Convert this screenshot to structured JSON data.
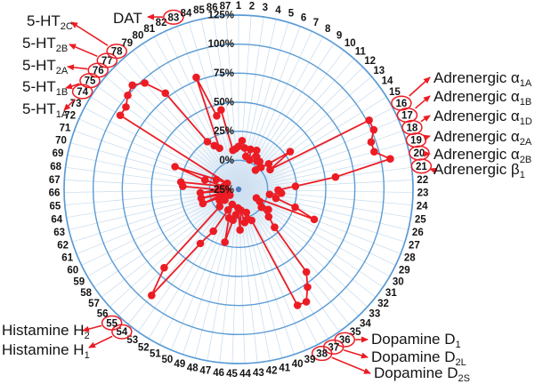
{
  "chart_data": {
    "type": "radar",
    "title": "",
    "axis_count": 87,
    "axis_labels": [
      "1",
      "2",
      "3",
      "4",
      "5",
      "6",
      "7",
      "8",
      "9",
      "10",
      "11",
      "12",
      "13",
      "14",
      "15",
      "16",
      "17",
      "18",
      "19",
      "20",
      "21",
      "22",
      "23",
      "24",
      "25",
      "26",
      "27",
      "28",
      "29",
      "30",
      "31",
      "32",
      "33",
      "34",
      "35",
      "36",
      "37",
      "38",
      "39",
      "40",
      "41",
      "42",
      "43",
      "44",
      "45",
      "46",
      "47",
      "48",
      "49",
      "50",
      "51",
      "52",
      "53",
      "54",
      "55",
      "56",
      "57",
      "58",
      "59",
      "60",
      "61",
      "62",
      "63",
      "64",
      "65",
      "66",
      "67",
      "68",
      "69",
      "70",
      "71",
      "72",
      "73",
      "74",
      "75",
      "76",
      "77",
      "78",
      "79",
      "80",
      "81",
      "82",
      "83",
      "84",
      "85",
      "86",
      "87"
    ],
    "values": [
      12,
      17,
      11,
      4,
      11,
      2,
      12,
      7,
      4,
      5,
      -3,
      2,
      9,
      30,
      7,
      102,
      102,
      96,
      96,
      108,
      59,
      24,
      9,
      12,
      2,
      8,
      26,
      45,
      -8,
      -4,
      6,
      0,
      10,
      20,
      67,
      78,
      88,
      87,
      4,
      -4,
      2,
      4,
      -7,
      10,
      -9,
      -3,
      2,
      22,
      1,
      -11,
      -5,
      17,
      32,
      93,
      68,
      -3,
      -10,
      -16,
      -6,
      -13,
      8,
      -10,
      8,
      -16,
      8,
      -8,
      23,
      25,
      -12,
      5,
      33,
      -4,
      -14,
      95,
      95,
      100,
      103,
      97,
      79,
      24,
      18,
      14,
      78,
      41,
      45,
      9,
      10
    ],
    "range": [
      -25,
      125
    ],
    "rings": {
      "values": [
        -25,
        0,
        25,
        50,
        75,
        100,
        125
      ],
      "labels": [
        "-25%",
        "0%",
        "25%",
        "50%",
        "75%",
        "100%",
        "125%"
      ]
    },
    "circled_axes": [
      16,
      17,
      18,
      19,
      20,
      21,
      36,
      37,
      38,
      54,
      55,
      74,
      75,
      76,
      77,
      78,
      83
    ],
    "callouts": [
      {
        "axis": 78,
        "text": "5-HT",
        "sub": "2C"
      },
      {
        "axis": 77,
        "text": "5-HT",
        "sub": "2B"
      },
      {
        "axis": 76,
        "text": "5-HT",
        "sub": "2A"
      },
      {
        "axis": 75,
        "text": "5-HT",
        "sub": "1B"
      },
      {
        "axis": 74,
        "text": "5-HT",
        "sub": "1A"
      },
      {
        "axis": 83,
        "text": "DAT",
        "sub": ""
      },
      {
        "axis": 16,
        "text": "Adrenergic α",
        "sub": "1A"
      },
      {
        "axis": 17,
        "text": "Adrenergic α",
        "sub": "1B"
      },
      {
        "axis": 18,
        "text": "Adrenergic α",
        "sub": "1D"
      },
      {
        "axis": 19,
        "text": "Adrenergic α",
        "sub": "2A"
      },
      {
        "axis": 20,
        "text": "Adrenergic α",
        "sub": "2B"
      },
      {
        "axis": 21,
        "text": "Adrenergic β",
        "sub": "1"
      },
      {
        "axis": 36,
        "text": "Dopamine D",
        "sub": "1"
      },
      {
        "axis": 37,
        "text": "Dopamine D",
        "sub": "2L"
      },
      {
        "axis": 38,
        "text": "Dopamine D",
        "sub": "2S"
      },
      {
        "axis": 55,
        "text": "Histamine H",
        "sub": "2"
      },
      {
        "axis": 54,
        "text": "Histamine H",
        "sub": "1"
      }
    ],
    "colors": {
      "series": "#ec1c24",
      "ring": "#5b9bd5",
      "spoke": "#c5daee",
      "center_dot": "#4f7cc0",
      "center_fill": "#cfe0f1",
      "label_text": "#141414"
    },
    "legend": null,
    "grid": true
  }
}
